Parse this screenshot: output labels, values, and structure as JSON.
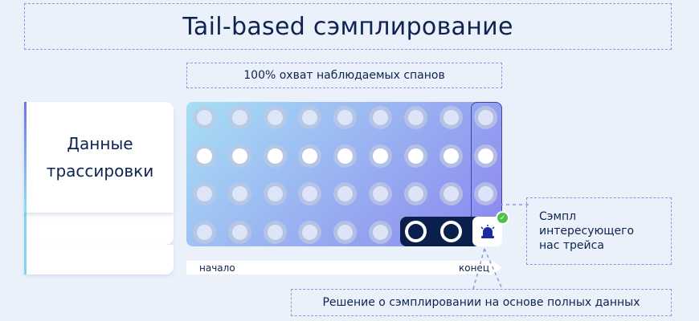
{
  "title": "Tail-based сэмплирование",
  "subtitle": "100% охват наблюдаемых спанов",
  "card": {
    "line1": "Данные",
    "line2": "трассировки"
  },
  "grid": {
    "rows": 4,
    "cols": 9,
    "highlight_row": 2
  },
  "timeline": {
    "start": "начало",
    "end": "конец"
  },
  "note": {
    "line1": "Сэмпл",
    "line2": "интересующего",
    "line3": "нас трейса"
  },
  "decision": "Решение о сэмплировании на основе полных данных",
  "icons": {
    "bell": "alarm-bell-icon",
    "check": "check-badge-icon"
  },
  "colors": {
    "accent": "#0b1f4d",
    "check": "#4cc24c",
    "dash": "#8f96e0"
  }
}
